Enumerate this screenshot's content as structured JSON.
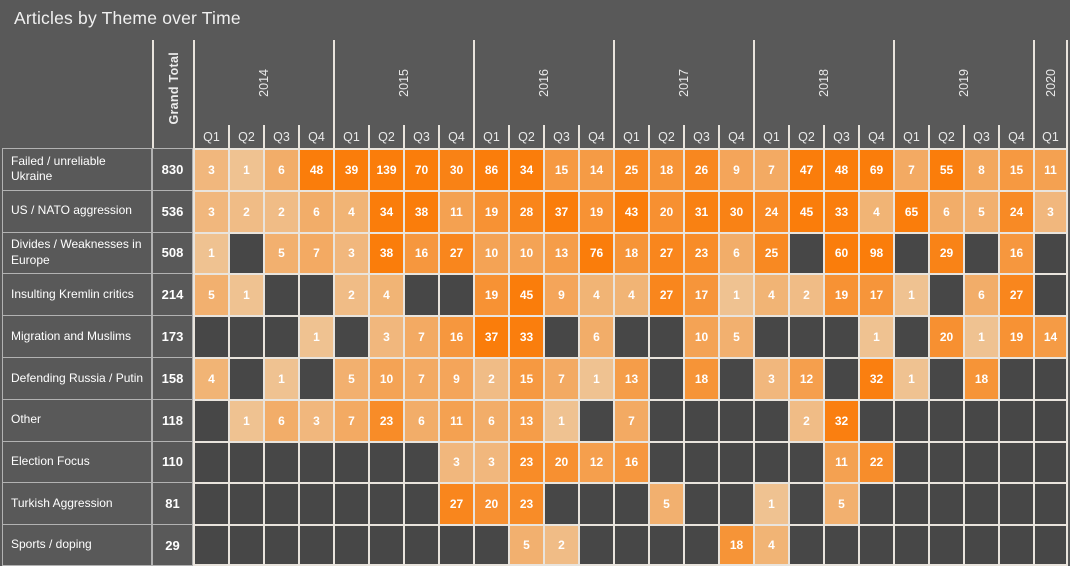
{
  "title": "Articles by Theme over Time",
  "chart_data": {
    "type": "heatmap",
    "title": "Articles by Theme over Time",
    "grand_total_label": "Grand Total",
    "columns": [
      {
        "year": "2014",
        "quarters": [
          "Q1",
          "Q2",
          "Q3",
          "Q4"
        ]
      },
      {
        "year": "2015",
        "quarters": [
          "Q1",
          "Q2",
          "Q3",
          "Q4"
        ]
      },
      {
        "year": "2016",
        "quarters": [
          "Q1",
          "Q2",
          "Q3",
          "Q4"
        ]
      },
      {
        "year": "2017",
        "quarters": [
          "Q1",
          "Q2",
          "Q3",
          "Q4"
        ]
      },
      {
        "year": "2018",
        "quarters": [
          "Q1",
          "Q2",
          "Q3",
          "Q4"
        ]
      },
      {
        "year": "2019",
        "quarters": [
          "Q1",
          "Q2",
          "Q3",
          "Q4"
        ]
      },
      {
        "year": "2020",
        "quarters": [
          "Q1"
        ]
      }
    ],
    "rows": [
      {
        "theme": "Failed / unreliable Ukraine",
        "grand_total": 830,
        "values": [
          3,
          1,
          6,
          48,
          39,
          139,
          70,
          30,
          86,
          34,
          15,
          14,
          25,
          18,
          26,
          9,
          7,
          47,
          48,
          69,
          7,
          55,
          8,
          15,
          11
        ]
      },
      {
        "theme": "US / NATO aggression",
        "grand_total": 536,
        "values": [
          3,
          2,
          2,
          6,
          4,
          34,
          38,
          11,
          19,
          28,
          37,
          19,
          43,
          20,
          31,
          30,
          24,
          45,
          33,
          4,
          65,
          6,
          5,
          24,
          3
        ]
      },
      {
        "theme": "Divides / Weaknesses in Europe",
        "grand_total": 508,
        "values": [
          1,
          null,
          5,
          7,
          3,
          38,
          16,
          27,
          10,
          10,
          13,
          76,
          18,
          27,
          23,
          6,
          25,
          null,
          60,
          98,
          null,
          29,
          null,
          16,
          null
        ]
      },
      {
        "theme": "Insulting Kremlin critics",
        "grand_total": 214,
        "values": [
          5,
          1,
          null,
          null,
          2,
          4,
          null,
          null,
          19,
          45,
          9,
          4,
          4,
          27,
          17,
          1,
          4,
          2,
          19,
          17,
          1,
          null,
          6,
          27,
          null
        ]
      },
      {
        "theme": "Migration and Muslims",
        "grand_total": 173,
        "values": [
          null,
          null,
          null,
          1,
          null,
          3,
          7,
          16,
          37,
          33,
          null,
          6,
          null,
          null,
          10,
          5,
          null,
          null,
          null,
          1,
          null,
          20,
          1,
          19,
          14
        ]
      },
      {
        "theme": "Defending Russia / Putin",
        "grand_total": 158,
        "values": [
          4,
          null,
          1,
          null,
          5,
          10,
          7,
          9,
          2,
          15,
          7,
          1,
          13,
          null,
          18,
          null,
          3,
          12,
          null,
          32,
          1,
          null,
          18,
          null,
          null
        ]
      },
      {
        "theme": "Other",
        "grand_total": 118,
        "values": [
          null,
          1,
          6,
          3,
          7,
          23,
          6,
          11,
          6,
          13,
          1,
          null,
          7,
          null,
          null,
          null,
          null,
          2,
          32,
          null,
          null,
          null,
          null,
          null,
          null
        ]
      },
      {
        "theme": "Election Focus",
        "grand_total": 110,
        "values": [
          null,
          null,
          null,
          null,
          null,
          null,
          null,
          3,
          3,
          23,
          20,
          12,
          16,
          null,
          null,
          null,
          null,
          null,
          11,
          22,
          null,
          null,
          null,
          null,
          null
        ]
      },
      {
        "theme": "Turkish Aggression",
        "grand_total": 81,
        "values": [
          null,
          null,
          null,
          null,
          null,
          null,
          null,
          27,
          20,
          23,
          null,
          null,
          null,
          5,
          null,
          null,
          1,
          null,
          5,
          null,
          null,
          null,
          null,
          null,
          null
        ]
      },
      {
        "theme": "Sports / doping",
        "grand_total": 29,
        "values": [
          null,
          null,
          null,
          null,
          null,
          null,
          null,
          null,
          null,
          5,
          2,
          null,
          null,
          null,
          null,
          18,
          4,
          null,
          null,
          null,
          null,
          null,
          null,
          null,
          null
        ]
      }
    ],
    "colors": {
      "low": "#edd0ad",
      "high": "#fa7d0b",
      "empty": "#474747",
      "gridline": "#e9e4dd",
      "label_border": "#b2b2b2",
      "background": "#595959",
      "text": "#ffffff"
    },
    "scale": {
      "vmax": 34,
      "exponent": 0.5
    },
    "layout": {
      "legend": "none",
      "grid": "on"
    }
  }
}
